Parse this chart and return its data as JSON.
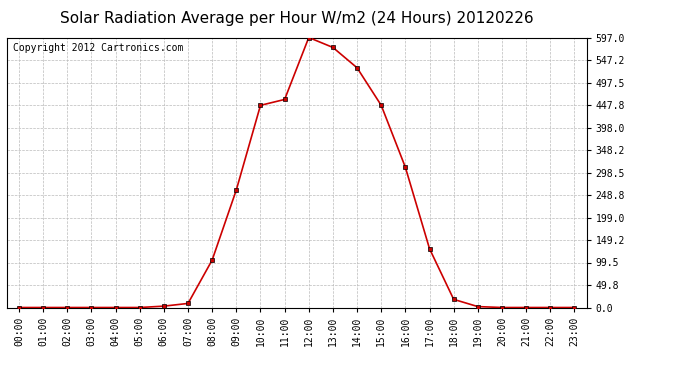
{
  "title": "Solar Radiation Average per Hour W/m2 (24 Hours) 20120226",
  "copyright": "Copyright 2012 Cartronics.com",
  "hours": [
    "00:00",
    "01:00",
    "02:00",
    "03:00",
    "04:00",
    "05:00",
    "06:00",
    "07:00",
    "08:00",
    "09:00",
    "10:00",
    "11:00",
    "12:00",
    "13:00",
    "14:00",
    "15:00",
    "16:00",
    "17:00",
    "18:00",
    "19:00",
    "20:00",
    "21:00",
    "22:00",
    "23:00"
  ],
  "values": [
    0.0,
    0.0,
    0.0,
    0.0,
    0.0,
    0.0,
    3.0,
    9.0,
    105.0,
    260.0,
    447.0,
    460.0,
    597.0,
    575.0,
    530.0,
    447.0,
    310.0,
    130.0,
    18.0,
    2.0,
    0.0,
    0.0,
    0.0,
    0.0
  ],
  "line_color": "#cc0000",
  "marker": "s",
  "marker_size": 3,
  "marker_color": "#cc0000",
  "marker_edge_color": "#000000",
  "background_color": "#ffffff",
  "plot_bg_color": "#ffffff",
  "grid_color": "#bbbbbb",
  "grid_style": "--",
  "ylim": [
    0.0,
    597.0
  ],
  "yticks": [
    0.0,
    49.8,
    99.5,
    149.2,
    199.0,
    248.8,
    298.5,
    348.2,
    398.0,
    447.8,
    497.5,
    547.2,
    597.0
  ],
  "title_fontsize": 11,
  "copyright_fontsize": 7,
  "tick_fontsize": 7,
  "border_color": "#000000"
}
